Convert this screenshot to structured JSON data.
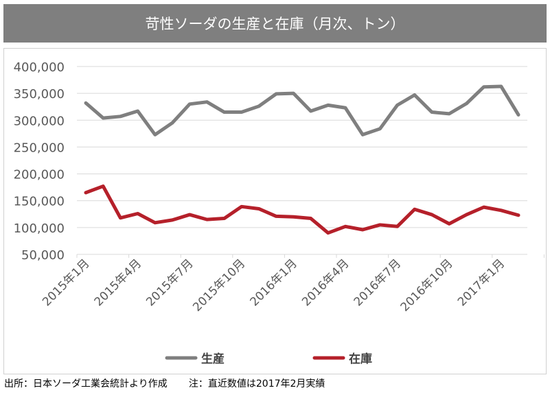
{
  "chart_data": {
    "type": "line",
    "title": "苛性ソーダの生産と在庫（月次、トン）",
    "x": [
      "2015年1月",
      "2015年2月",
      "2015年3月",
      "2015年4月",
      "2015年5月",
      "2015年6月",
      "2015年7月",
      "2015年8月",
      "2015年9月",
      "2015年10月",
      "2015年11月",
      "2015年12月",
      "2016年1月",
      "2016年2月",
      "2016年3月",
      "2016年4月",
      "2016年5月",
      "2016年6月",
      "2016年7月",
      "2016年8月",
      "2016年9月",
      "2016年10月",
      "2016年11月",
      "2016年12月",
      "2017年1月",
      "2017年2月"
    ],
    "tick_labels": [
      "2015年1月",
      "2015年4月",
      "2015年7月",
      "2015年10月",
      "2016年1月",
      "2016年4月",
      "2016年7月",
      "2016年10月",
      "2017年1月"
    ],
    "series": [
      {
        "name": "生産",
        "color": "#7f7f7f",
        "values": [
          332000,
          304000,
          307000,
          317000,
          273000,
          295000,
          330000,
          334000,
          315000,
          315000,
          326000,
          349000,
          350000,
          317000,
          328000,
          323000,
          273000,
          284000,
          328000,
          347000,
          315000,
          312000,
          331000,
          362000,
          363000,
          310000
        ]
      },
      {
        "name": "在庫",
        "color": "#b5202a",
        "values": [
          165000,
          177000,
          118000,
          126000,
          109000,
          114000,
          124000,
          115000,
          117000,
          139000,
          135000,
          121000,
          120000,
          117000,
          90000,
          102000,
          96000,
          105000,
          102000,
          134000,
          124000,
          107000,
          124000,
          138000,
          132000,
          123000
        ]
      }
    ],
    "ylim": [
      50000,
      400000
    ],
    "yticks": [
      "400,000",
      "350,000",
      "300,000",
      "250,000",
      "200,000",
      "150,000",
      "100,000",
      "50,000"
    ],
    "grid": true,
    "legend": "bottom"
  },
  "footer": {
    "source": "出所：日本ソーダ工業会統計より作成",
    "note": "注：直近数値は2017年2月実績"
  }
}
